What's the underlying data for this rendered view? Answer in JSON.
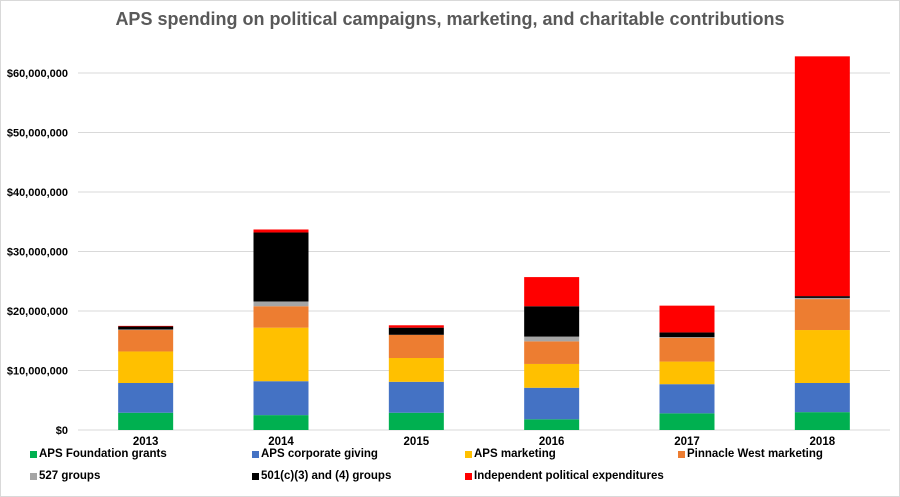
{
  "chart_data": {
    "type": "bar",
    "stacked": true,
    "title": "APS spending on political campaigns, marketing, and charitable contributions",
    "xlabel": "",
    "ylabel": "",
    "categories": [
      "2013",
      "2014",
      "2015",
      "2016",
      "2017",
      "2018"
    ],
    "ylim": [
      0,
      60000000
    ],
    "yticks": [
      "$0",
      "$10,000,000",
      "$20,000,000",
      "$30,000,000",
      "$40,000,000",
      "$50,000,000",
      "$60,000,000"
    ],
    "ytick_values": [
      0,
      10000000,
      20000000,
      30000000,
      40000000,
      50000000,
      60000000
    ],
    "grid": true,
    "legend_position": "bottom",
    "series": [
      {
        "name": "APS Foundation grants",
        "color": "#00b050",
        "values": [
          2900000,
          2500000,
          2900000,
          1800000,
          2800000,
          3000000
        ]
      },
      {
        "name": "APS corporate giving",
        "color": "#4472c4",
        "values": [
          5000000,
          5700000,
          5200000,
          5300000,
          4900000,
          4900000
        ]
      },
      {
        "name": "APS marketing",
        "color": "#ffc000",
        "values": [
          5300000,
          9000000,
          4000000,
          4000000,
          3800000,
          8900000
        ]
      },
      {
        "name": "Pinnacle West marketing",
        "color": "#ed7d31",
        "values": [
          3600000,
          3600000,
          3900000,
          3800000,
          4000000,
          5200000
        ]
      },
      {
        "name": "527 groups",
        "color": "#a5a5a5",
        "values": [
          100000,
          800000,
          0,
          800000,
          100000,
          200000
        ]
      },
      {
        "name": "501(c)(3) and (4) groups",
        "color": "#000000",
        "values": [
          500000,
          11600000,
          1200000,
          5100000,
          800000,
          300000
        ]
      },
      {
        "name": "Independent political expenditures",
        "color": "#ff0000",
        "values": [
          100000,
          500000,
          400000,
          4900000,
          4500000,
          40300000
        ]
      }
    ]
  }
}
